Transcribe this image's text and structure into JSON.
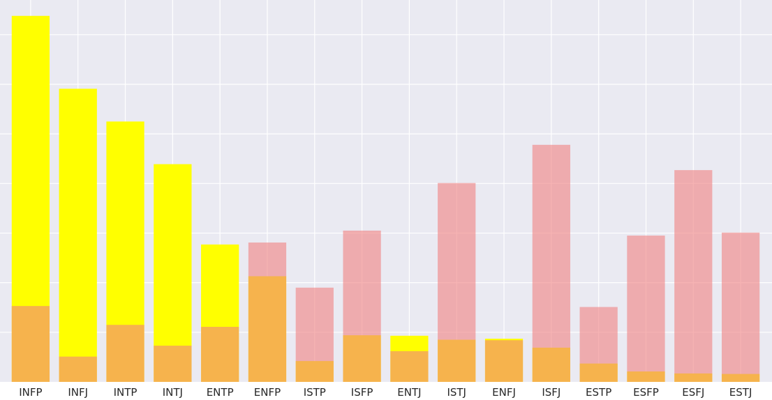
{
  "chart_data": {
    "type": "bar",
    "title": "",
    "xlabel": "",
    "ylabel": "",
    "grid": true,
    "ylim": [
      0,
      7.7
    ],
    "categories": [
      "INFP",
      "INFJ",
      "INTP",
      "INTJ",
      "ENTP",
      "ENFP",
      "ISTP",
      "ISFP",
      "ENTJ",
      "ISTJ",
      "ENFJ",
      "ISFJ",
      "ESTP",
      "ESFP",
      "ESFJ",
      "ESTJ"
    ],
    "series": [
      {
        "color": "#ffff00",
        "opacity": 1.0,
        "values": [
          7.38,
          5.91,
          5.25,
          4.39,
          2.77,
          2.13,
          0.42,
          0.94,
          0.93,
          0.85,
          0.87,
          0.69,
          0.37,
          0.21,
          0.17,
          0.16
        ]
      },
      {
        "color": "#f08080",
        "opacity": 0.6,
        "values": [
          1.53,
          0.51,
          1.15,
          0.73,
          1.11,
          2.81,
          1.9,
          3.05,
          0.62,
          4.01,
          0.84,
          4.78,
          1.51,
          2.95,
          4.27,
          3.01
        ]
      }
    ]
  }
}
